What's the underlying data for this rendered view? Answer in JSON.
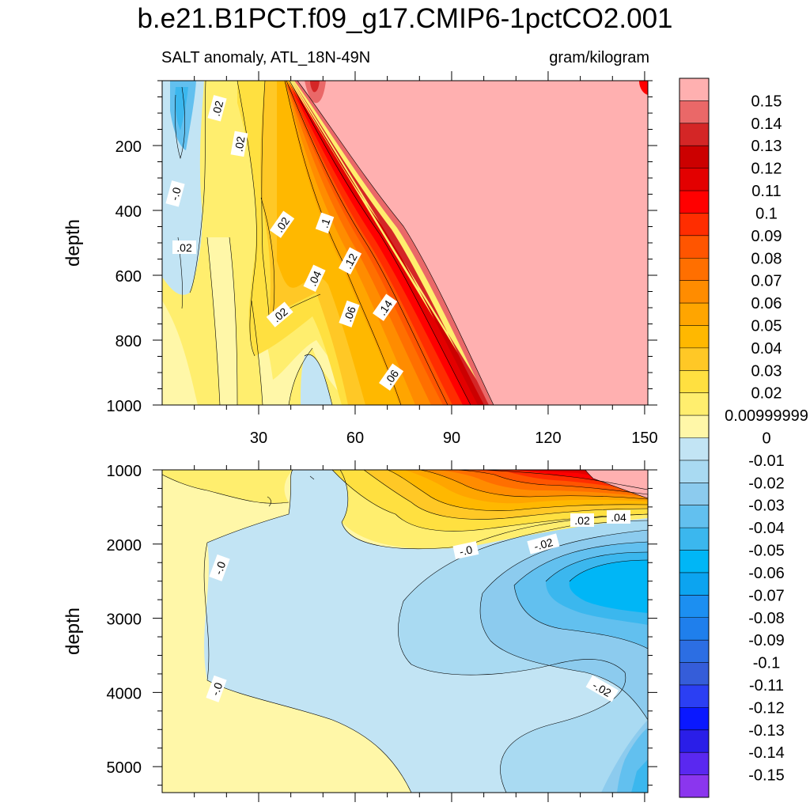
{
  "chart_data": {
    "type": "filled-contour",
    "title": "b.e21.B1PCT.f09_g17.CMIP6-1pctCO2.001",
    "subtitle_left": "SALT anomaly, ATL_18N-49N",
    "subtitle_right": "gram/kilogram",
    "x_ticks": [
      "30",
      "60",
      "90",
      "120",
      "150"
    ],
    "x_range": [
      0,
      151
    ],
    "panels": [
      {
        "name": "upper",
        "ylabel": "depth",
        "y_range": [
          0,
          1000
        ],
        "y_ticks": [
          "200",
          "400",
          "600",
          "800",
          "1000"
        ],
        "contour_labels": [
          ".02",
          ".02",
          "-.0",
          ".02",
          ".02",
          ".1",
          ".12",
          ".04",
          ".14",
          ".02",
          ".06",
          ".06"
        ]
      },
      {
        "name": "lower",
        "ylabel": "depth",
        "y_range": [
          1000,
          5350
        ],
        "y_ticks": [
          "1000",
          "2000",
          "3000",
          "4000",
          "5000"
        ],
        "contour_labels": [
          ".04",
          ".02",
          "-.02",
          "-.0",
          "-.0",
          "-.0",
          "-.02"
        ]
      }
    ],
    "colorbar_labels": [
      "0.15",
      "0.14",
      "0.13",
      "0.12",
      "0.11",
      "0.1",
      "0.09",
      "0.08",
      "0.07",
      "0.06",
      "0.05",
      "0.04",
      "0.03",
      "0.02",
      "0.00999999",
      "0",
      "-0.01",
      "-0.02",
      "-0.03",
      "-0.04",
      "-0.05",
      "-0.06",
      "-0.07",
      "-0.08",
      "-0.09",
      "-0.1",
      "-0.11",
      "-0.12",
      "-0.13",
      "-0.14",
      "-0.15"
    ],
    "colorbar_colors": [
      "#ffb0b0",
      "#ea6868",
      "#d42626",
      "#cc0000",
      "#e30000",
      "#ff0000",
      "#ff2d00",
      "#ff5500",
      "#ff6f00",
      "#ff8c00",
      "#ffa500",
      "#ffb800",
      "#ffc826",
      "#ffe040",
      "#ffee6e",
      "#fff7a8",
      "#c2e4f4",
      "#a9daf2",
      "#8ccbee",
      "#62c0ef",
      "#3bb7ee",
      "#00b6f6",
      "#0ca4f0",
      "#1c8ff1",
      "#1f7fec",
      "#2c6ee3",
      "#355dd9",
      "#2b3ff3",
      "#0a18ff",
      "#2a1ee8",
      "#5a28f0",
      "#8b36ee"
    ]
  }
}
